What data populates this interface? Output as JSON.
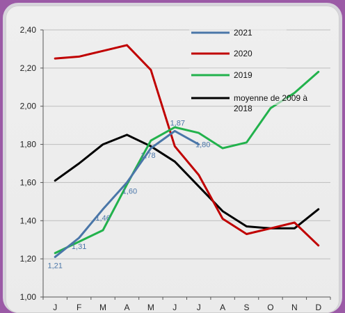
{
  "chart_data": {
    "type": "line",
    "categories": [
      "J",
      "F",
      "M",
      "A",
      "M",
      "J",
      "J",
      "A",
      "S",
      "O",
      "N",
      "D"
    ],
    "ylim": [
      1.0,
      2.4
    ],
    "yticks": [
      "1,00",
      "1,20",
      "1,40",
      "1,60",
      "1,80",
      "2,00",
      "2,20",
      "2,40"
    ],
    "yticks_values": [
      1.0,
      1.2,
      1.4,
      1.6,
      1.8,
      2.0,
      2.2,
      2.4
    ],
    "grid": true,
    "legend_position": "top-right",
    "series": [
      {
        "name": "2021",
        "color": "#4a76a8",
        "values": [
          1.21,
          1.31,
          1.46,
          1.6,
          1.78,
          1.87,
          1.8,
          null,
          null,
          null,
          null,
          null
        ],
        "labels": [
          "1,21",
          "1,31",
          "1,46",
          "1,60",
          "1,78",
          "1,87",
          "1,80",
          null,
          null,
          null,
          null,
          null
        ]
      },
      {
        "name": "2020",
        "color": "#c00000",
        "values": [
          2.25,
          2.26,
          2.29,
          2.32,
          2.19,
          1.79,
          1.64,
          1.41,
          1.33,
          1.36,
          1.39,
          1.27
        ]
      },
      {
        "name": "2019",
        "color": "#22b24c",
        "values": [
          1.23,
          1.29,
          1.35,
          1.59,
          1.82,
          1.89,
          1.86,
          1.78,
          1.81,
          1.99,
          2.07,
          2.18
        ]
      },
      {
        "name": "moyenne de 2009 à 2018",
        "color": "#000000",
        "values": [
          1.61,
          1.7,
          1.8,
          1.85,
          1.79,
          1.71,
          1.58,
          1.45,
          1.37,
          1.36,
          1.36,
          1.46
        ]
      }
    ]
  }
}
